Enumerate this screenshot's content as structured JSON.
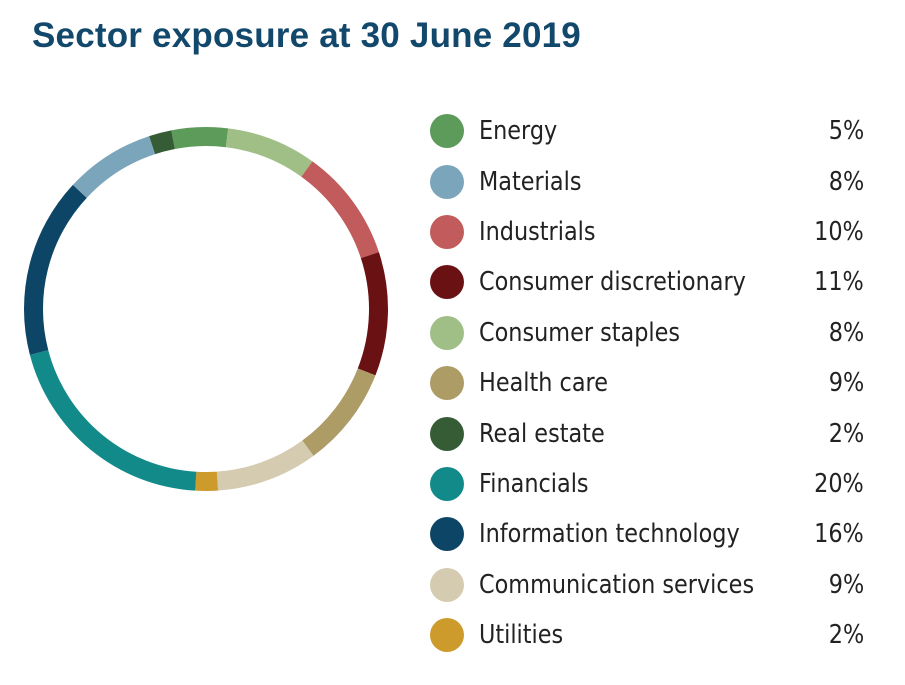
{
  "chart_data": {
    "type": "pie",
    "style": "donut",
    "title": "Sector exposure at 30 June 2019",
    "legend_position": "right",
    "slices": [
      {
        "name": "Energy",
        "value": 5,
        "label": "5%",
        "color": "#5c9b5a"
      },
      {
        "name": "Consumer staples",
        "value": 8,
        "label": "8%",
        "color": "#9fbf86"
      },
      {
        "name": "Industrials",
        "value": 10,
        "label": "10%",
        "color": "#c25b5b"
      },
      {
        "name": "Consumer discretionary",
        "value": 11,
        "label": "11%",
        "color": "#6a1114"
      },
      {
        "name": "Health care",
        "value": 9,
        "label": "9%",
        "color": "#ad9c66"
      },
      {
        "name": "Communication services",
        "value": 9,
        "label": "9%",
        "color": "#d4cbb0"
      },
      {
        "name": "Utilities",
        "value": 2,
        "label": "2%",
        "color": "#cd9a2c"
      },
      {
        "name": "Financials",
        "value": 20,
        "label": "20%",
        "color": "#138a8a"
      },
      {
        "name": "Information technology",
        "value": 16,
        "label": "16%",
        "color": "#0d4566"
      },
      {
        "name": "Materials",
        "value": 8,
        "label": "8%",
        "color": "#7ba5bb"
      },
      {
        "name": "Real estate",
        "value": 2,
        "label": "2%",
        "color": "#365c35"
      }
    ],
    "legend": [
      {
        "name": "Energy",
        "label": "5%",
        "color": "#5c9b5a"
      },
      {
        "name": "Materials",
        "label": "8%",
        "color": "#7ba5bb"
      },
      {
        "name": "Industrials",
        "label": "10%",
        "color": "#c25b5b"
      },
      {
        "name": "Consumer discretionary",
        "label": "11%",
        "color": "#6a1114"
      },
      {
        "name": "Consumer staples",
        "label": "8%",
        "color": "#9fbf86"
      },
      {
        "name": "Health care",
        "label": "9%",
        "color": "#ad9c66"
      },
      {
        "name": "Real estate",
        "label": "2%",
        "color": "#365c35"
      },
      {
        "name": "Financials",
        "label": "20%",
        "color": "#138a8a"
      },
      {
        "name": "Information technology",
        "label": "16%",
        "color": "#0d4566"
      },
      {
        "name": "Communication services",
        "label": "9%",
        "color": "#d4cbb0"
      },
      {
        "name": "Utilities",
        "label": "2%",
        "color": "#cd9a2c"
      }
    ]
  }
}
